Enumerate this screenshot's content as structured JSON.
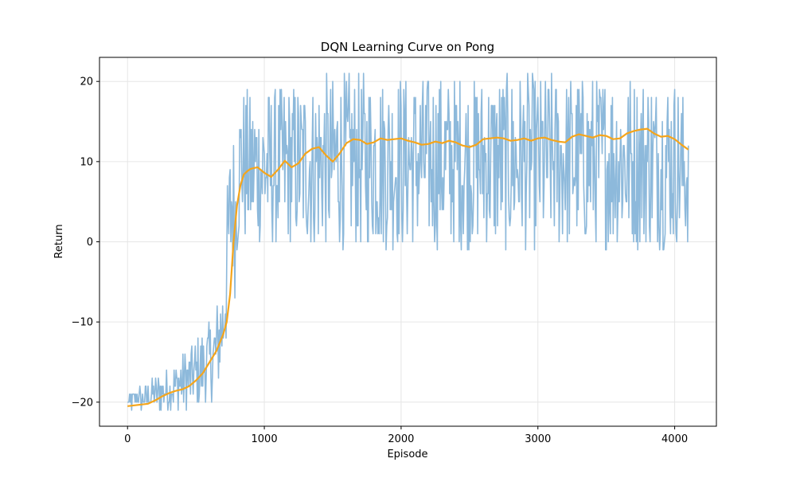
{
  "chart_data": {
    "type": "line",
    "title": "DQN Learning Curve on Pong",
    "xlabel": "Episode",
    "ylabel": "Return",
    "xlim": [
      -205,
      4305
    ],
    "ylim": [
      -23,
      23
    ],
    "x_ticks": [
      0,
      1000,
      2000,
      3000,
      4000
    ],
    "x_tick_labels": [
      "0",
      "1000",
      "2000",
      "3000",
      "4000"
    ],
    "y_ticks": [
      -20,
      -10,
      0,
      10,
      20
    ],
    "y_tick_labels": [
      "−20",
      "−10",
      "0",
      "10",
      "20"
    ],
    "grid": true,
    "legend": "none",
    "series": [
      {
        "role": "raw",
        "color": "#8db9db",
        "x_start": 0,
        "x_step": 5,
        "envelope_x": [
          0,
          100,
          200,
          300,
          400,
          500,
          600,
          650,
          700,
          730,
          760,
          790,
          800,
          830,
          860,
          900,
          1000,
          1200,
          1500,
          2000,
          2500,
          3000,
          3500,
          4000,
          4100
        ],
        "envelope_min": [
          -21,
          -21,
          -21,
          -21,
          -21,
          -21,
          -20,
          -19,
          -17,
          -12,
          -5,
          -8,
          -3,
          2,
          -1,
          -1,
          -1,
          -1,
          -1,
          -1,
          -1,
          -1,
          -1,
          -1,
          -1
        ],
        "envelope_max": [
          -19,
          -18,
          -17,
          -16,
          -14,
          -12,
          -10,
          -8,
          -3,
          8,
          15,
          14,
          16,
          19,
          19,
          19,
          19,
          20,
          21,
          21,
          21,
          21,
          21,
          21,
          18
        ]
      },
      {
        "role": "moving-average",
        "color": "#f5a51b",
        "x": [
          0,
          50,
          100,
          150,
          200,
          250,
          300,
          350,
          400,
          450,
          500,
          550,
          600,
          650,
          700,
          725,
          750,
          775,
          800,
          825,
          850,
          875,
          900,
          950,
          1000,
          1050,
          1100,
          1150,
          1200,
          1250,
          1300,
          1350,
          1400,
          1450,
          1500,
          1550,
          1600,
          1650,
          1700,
          1750,
          1800,
          1850,
          1900,
          1950,
          2000,
          2050,
          2100,
          2150,
          2200,
          2250,
          2300,
          2350,
          2400,
          2450,
          2500,
          2550,
          2600,
          2650,
          2700,
          2750,
          2800,
          2850,
          2900,
          2950,
          3000,
          3050,
          3100,
          3150,
          3200,
          3250,
          3300,
          3350,
          3400,
          3450,
          3500,
          3550,
          3600,
          3650,
          3700,
          3750,
          3800,
          3850,
          3900,
          3950,
          4000,
          4050,
          4100
        ],
        "y": [
          -20.5,
          -20.4,
          -20.3,
          -20.2,
          -19.8,
          -19.3,
          -18.9,
          -18.6,
          -18.4,
          -18.0,
          -17.3,
          -16.4,
          -15.0,
          -13.6,
          -11.5,
          -10.0,
          -6.5,
          0.0,
          4.5,
          7.0,
          8.4,
          8.8,
          9.1,
          9.3,
          8.6,
          8.1,
          9.0,
          10.1,
          9.3,
          9.8,
          11.0,
          11.6,
          11.8,
          10.8,
          10.0,
          11.0,
          12.3,
          12.8,
          12.7,
          12.2,
          12.4,
          12.9,
          12.7,
          12.8,
          12.9,
          12.6,
          12.4,
          12.1,
          12.2,
          12.5,
          12.3,
          12.6,
          12.4,
          12.0,
          11.8,
          12.1,
          12.8,
          12.9,
          13.0,
          12.9,
          12.6,
          12.7,
          12.9,
          12.6,
          12.9,
          13.0,
          12.7,
          12.5,
          12.4,
          13.1,
          13.4,
          13.2,
          13.0,
          13.3,
          13.2,
          12.8,
          12.9,
          13.5,
          13.8,
          14.0,
          14.1,
          13.5,
          13.1,
          13.2,
          12.8,
          12.1,
          11.5
        ]
      }
    ]
  }
}
